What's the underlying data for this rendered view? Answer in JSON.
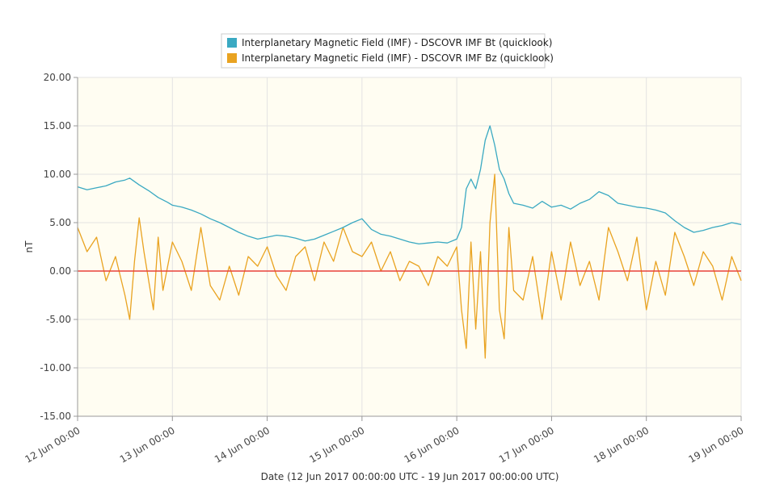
{
  "chart_data": {
    "type": "line",
    "xlabel": "Date (12 Jun 2017 00:00:00 UTC - 19 Jun 2017 00:00:00 UTC)",
    "ylabel": "nT",
    "ylim": [
      -15,
      20
    ],
    "xlim": [
      "12 Jun 00:00",
      "19 Jun 00:00"
    ],
    "y_ticks": [
      "-15.00",
      "-10.00",
      "-5.00",
      "0.00",
      "5.00",
      "10.00",
      "15.00",
      "20.00"
    ],
    "x_ticks": [
      "12 Jun 00:00",
      "13 Jun 00:00",
      "14 Jun 00:00",
      "15 Jun 00:00",
      "16 Jun 00:00",
      "17 Jun 00:00",
      "18 Jun 00:00",
      "19 Jun 00:00"
    ],
    "grid": true,
    "legend_position": "top-center",
    "zero_line_color": "#e8413a",
    "plot_background": "#fffdf2",
    "series": [
      {
        "name": "Interplanetary Magnetic Field (IMF) - DSCOVR IMF Bt (quicklook)",
        "color": "#3aa9c2",
        "x_days": [
          0.0,
          0.1,
          0.2,
          0.3,
          0.4,
          0.5,
          0.55,
          0.65,
          0.75,
          0.85,
          0.95,
          1.0,
          1.1,
          1.2,
          1.3,
          1.4,
          1.5,
          1.6,
          1.7,
          1.8,
          1.9,
          2.0,
          2.1,
          2.2,
          2.3,
          2.4,
          2.5,
          2.6,
          2.7,
          2.8,
          2.9,
          3.0,
          3.1,
          3.2,
          3.3,
          3.4,
          3.5,
          3.6,
          3.7,
          3.8,
          3.9,
          4.0,
          4.05,
          4.1,
          4.15,
          4.2,
          4.25,
          4.3,
          4.35,
          4.4,
          4.45,
          4.5,
          4.55,
          4.6,
          4.7,
          4.8,
          4.9,
          5.0,
          5.1,
          5.2,
          5.3,
          5.4,
          5.5,
          5.6,
          5.7,
          5.8,
          5.9,
          6.0,
          6.1,
          6.2,
          6.3,
          6.4,
          6.5,
          6.6,
          6.7,
          6.8,
          6.9,
          7.0
        ],
        "values": [
          8.7,
          8.4,
          8.6,
          8.8,
          9.2,
          9.4,
          9.6,
          8.9,
          8.3,
          7.6,
          7.1,
          6.8,
          6.6,
          6.3,
          5.9,
          5.4,
          5.0,
          4.5,
          4.0,
          3.6,
          3.3,
          3.5,
          3.7,
          3.6,
          3.4,
          3.1,
          3.3,
          3.7,
          4.1,
          4.5,
          5.0,
          5.4,
          4.3,
          3.8,
          3.6,
          3.3,
          3.0,
          2.8,
          2.9,
          3.0,
          2.9,
          3.3,
          4.5,
          8.5,
          9.5,
          8.5,
          10.5,
          13.5,
          15.0,
          13.0,
          10.5,
          9.5,
          8.0,
          7.0,
          6.8,
          6.5,
          7.2,
          6.6,
          6.8,
          6.4,
          7.0,
          7.4,
          8.2,
          7.8,
          7.0,
          6.8,
          6.6,
          6.5,
          6.3,
          6.0,
          5.2,
          4.5,
          4.0,
          4.2,
          4.5,
          4.7,
          5.0,
          4.8
        ]
      },
      {
        "name": "Interplanetary Magnetic Field (IMF) - DSCOVR IMF Bz (quicklook)",
        "color": "#e9a321",
        "x_days": [
          0.0,
          0.1,
          0.2,
          0.3,
          0.4,
          0.5,
          0.55,
          0.6,
          0.65,
          0.7,
          0.8,
          0.85,
          0.9,
          1.0,
          1.1,
          1.2,
          1.3,
          1.4,
          1.5,
          1.6,
          1.7,
          1.8,
          1.9,
          2.0,
          2.1,
          2.2,
          2.3,
          2.4,
          2.5,
          2.6,
          2.7,
          2.8,
          2.9,
          3.0,
          3.1,
          3.2,
          3.3,
          3.4,
          3.5,
          3.6,
          3.7,
          3.8,
          3.9,
          4.0,
          4.05,
          4.1,
          4.15,
          4.2,
          4.25,
          4.3,
          4.35,
          4.4,
          4.45,
          4.5,
          4.55,
          4.6,
          4.7,
          4.8,
          4.9,
          5.0,
          5.1,
          5.2,
          5.3,
          5.4,
          5.5,
          5.6,
          5.7,
          5.8,
          5.9,
          6.0,
          6.1,
          6.2,
          6.3,
          6.4,
          6.5,
          6.6,
          6.7,
          6.8,
          6.9,
          7.0
        ],
        "values": [
          4.5,
          2.0,
          3.5,
          -1.0,
          1.5,
          -2.5,
          -5.0,
          1.0,
          5.5,
          2.0,
          -4.0,
          3.5,
          -2.0,
          3.0,
          1.0,
          -2.0,
          4.5,
          -1.5,
          -3.0,
          0.5,
          -2.5,
          1.5,
          0.5,
          2.5,
          -0.5,
          -2.0,
          1.5,
          2.5,
          -1.0,
          3.0,
          1.0,
          4.5,
          2.0,
          1.5,
          3.0,
          0.0,
          2.0,
          -1.0,
          1.0,
          0.5,
          -1.5,
          1.5,
          0.5,
          2.5,
          -4.0,
          -8.0,
          3.0,
          -6.0,
          2.0,
          -9.0,
          5.0,
          10.0,
          -4.0,
          -7.0,
          4.5,
          -2.0,
          -3.0,
          1.5,
          -5.0,
          2.0,
          -3.0,
          3.0,
          -1.5,
          1.0,
          -3.0,
          4.5,
          2.0,
          -1.0,
          3.5,
          -4.0,
          1.0,
          -2.5,
          4.0,
          1.5,
          -1.5,
          2.0,
          0.5,
          -3.0,
          1.5,
          -1.0
        ]
      }
    ]
  }
}
